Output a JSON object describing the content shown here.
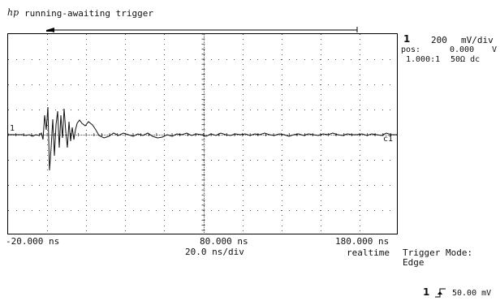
{
  "header": {
    "logo": "hp",
    "status": "running-awaiting trigger"
  },
  "channel": {
    "number": "1",
    "scale_value": "200",
    "scale_unit": "mV/div",
    "pos_label": "pos:",
    "pos_value": "0.000",
    "pos_unit": "V",
    "probe_ratio": "1.000:1",
    "coupling": "50Ω dc",
    "marker_left": "1",
    "marker_right": "c1"
  },
  "timebase": {
    "left_time": "-20.000 ns",
    "center_time": "80.000 ns",
    "right_time": "180.000 ns",
    "scale": "20.0 ns/div",
    "mode": "realtime"
  },
  "trigger": {
    "mode_label": "Trigger Mode:",
    "mode_value": "Edge",
    "source": "1",
    "level": "50.00 mV",
    "slope_icon": "rising-edge-icon"
  },
  "colors": {
    "trace": "#111111",
    "grid": "#555555",
    "background": "#ffffff"
  }
}
